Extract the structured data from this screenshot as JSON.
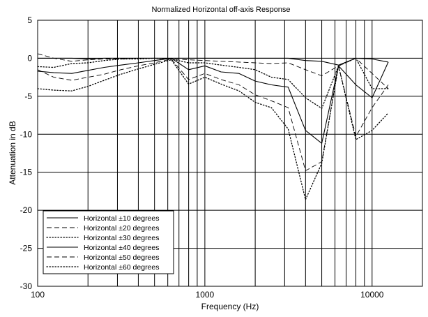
{
  "chart_data": {
    "type": "line",
    "title": "Normalized Horizontal off-axis Response",
    "xlabel": "Frequency (Hz)",
    "ylabel": "Attenuation in dB",
    "xscale": "log",
    "xlim": [
      100,
      20000
    ],
    "ylim": [
      -30,
      5
    ],
    "xtick_labels": [
      "100",
      "1000",
      "10000"
    ],
    "ytick_labels": [
      "5",
      "0",
      "-5",
      "-10",
      "-15",
      "-20",
      "-25",
      "-30"
    ],
    "grid": true,
    "legend_position": "bottom-left",
    "series": [
      {
        "name": "Horizontal ±10 degrees",
        "style": "solid",
        "width": 1.1,
        "x": [
          100,
          125,
          160,
          200,
          250,
          315,
          400,
          500,
          630,
          800,
          1000,
          1250,
          1600,
          2000,
          2500,
          3150,
          4000,
          5000,
          6300,
          8000,
          10000,
          12500
        ],
        "y": [
          0,
          0,
          0,
          -0.1,
          0,
          0,
          0,
          0,
          0,
          0,
          0,
          0,
          0,
          0,
          0,
          0,
          -0.3,
          -0.4,
          -0.9,
          0,
          -0.1,
          -0.5
        ]
      },
      {
        "name": "Horizontal ±20 degrees",
        "style": "dashed",
        "width": 0.9,
        "x": [
          100,
          125,
          160,
          200,
          250,
          315,
          400,
          500,
          630,
          800,
          1000,
          1250,
          1600,
          2000,
          2500,
          3150,
          4000,
          5000,
          6300,
          8000,
          10000,
          12500
        ],
        "y": [
          0.6,
          0,
          -0.4,
          -0.2,
          -0.1,
          -0.1,
          0,
          0,
          -0.1,
          -0.2,
          -0.3,
          -0.4,
          -0.5,
          -0.6,
          -0.7,
          -0.6,
          -1.5,
          -2.3,
          -1.0,
          0,
          -2.0,
          -4.0
        ]
      },
      {
        "name": "Horizontal ±30 degrees",
        "style": "dotted",
        "width": 1.3,
        "x": [
          100,
          125,
          160,
          200,
          250,
          315,
          400,
          500,
          630,
          800,
          1000,
          1250,
          1600,
          2000,
          2500,
          3150,
          4000,
          5000,
          6300,
          8000,
          10000,
          12500
        ],
        "y": [
          -1.1,
          -1.2,
          -0.7,
          -0.6,
          -0.3,
          -0.1,
          -0.1,
          0,
          -0.1,
          -0.6,
          -0.6,
          -0.9,
          -1.2,
          -1.5,
          -2.5,
          -2.8,
          -5.2,
          -6.6,
          -1.0,
          0,
          -4.0,
          -4.0
        ]
      },
      {
        "name": "Horizontal ±40 degrees",
        "style": "solid",
        "width": 1.1,
        "x": [
          100,
          125,
          160,
          200,
          250,
          315,
          400,
          500,
          630,
          800,
          1000,
          1250,
          1600,
          2000,
          2500,
          3150,
          4000,
          5000,
          6300,
          8000,
          10000,
          12500
        ],
        "y": [
          -1.7,
          -1.9,
          -2.0,
          -1.6,
          -1.2,
          -0.9,
          -0.6,
          -0.3,
          0,
          -1.5,
          -1.0,
          -1.8,
          -2.0,
          -3.0,
          -3.5,
          -3.8,
          -9.5,
          -11.2,
          -1.0,
          -3.5,
          -5.2,
          -0.5
        ]
      },
      {
        "name": "Horizontal ±50 degrees",
        "style": "dashed",
        "width": 0.9,
        "x": [
          100,
          125,
          160,
          200,
          250,
          315,
          400,
          500,
          630,
          800,
          1000,
          1250,
          1600,
          2000,
          2500,
          3150,
          4000,
          5000,
          6300,
          8000,
          10000,
          12500
        ],
        "y": [
          -1.5,
          -2.5,
          -2.9,
          -2.5,
          -2.1,
          -1.5,
          -1.0,
          -0.6,
          -0.1,
          -2.8,
          -2.0,
          -2.8,
          -3.5,
          -4.8,
          -5.6,
          -6.5,
          -14.8,
          -13.6,
          -1.0,
          -10.3,
          -6.5,
          -3.5
        ]
      },
      {
        "name": "Horizontal ±60 degrees",
        "style": "dotted",
        "width": 1.3,
        "x": [
          100,
          125,
          160,
          200,
          250,
          315,
          400,
          500,
          630,
          800,
          1000,
          1250,
          1600,
          2000,
          2500,
          3150,
          4000,
          5000,
          6300,
          8000,
          10000,
          12500
        ],
        "y": [
          -4.0,
          -4.2,
          -4.3,
          -3.7,
          -2.9,
          -2.1,
          -1.4,
          -0.8,
          -0.2,
          -3.4,
          -2.5,
          -3.4,
          -4.3,
          -5.8,
          -6.5,
          -9.3,
          -18.6,
          -13.8,
          -1.0,
          -10.7,
          -9.5,
          -7.2
        ]
      }
    ]
  }
}
